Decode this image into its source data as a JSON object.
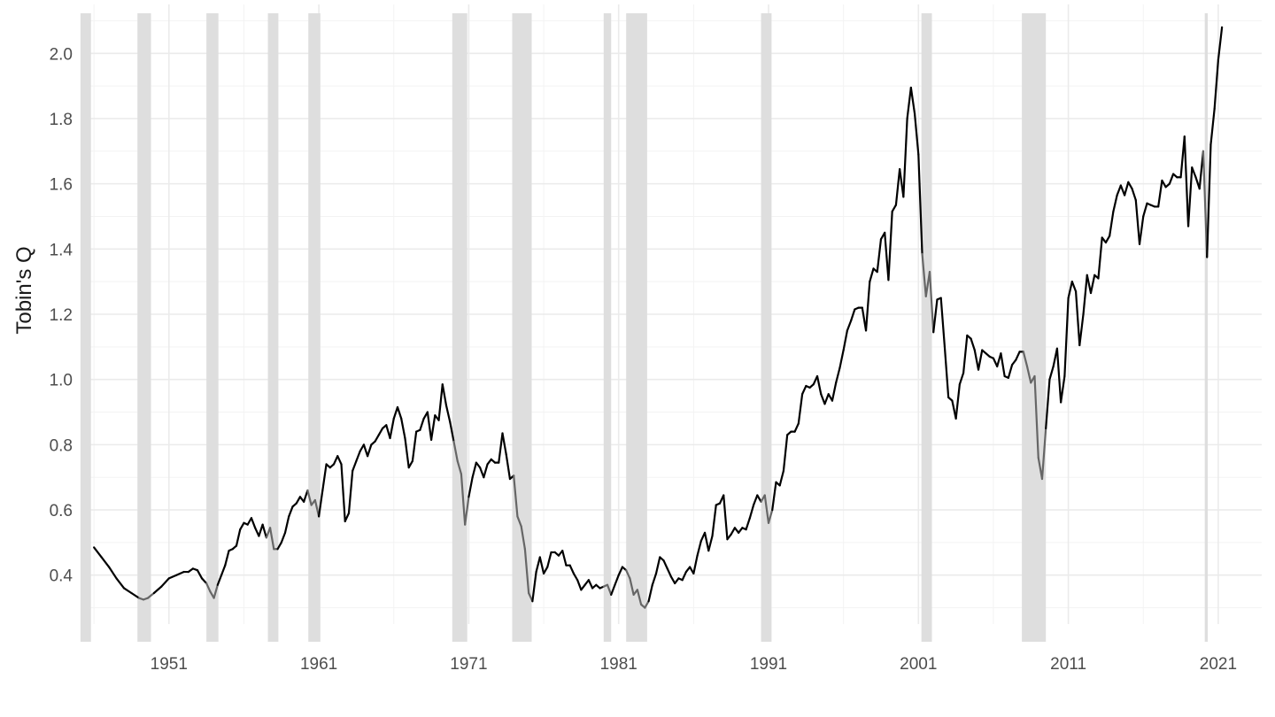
{
  "chart_data": {
    "type": "line",
    "title": "",
    "xlabel": "",
    "ylabel": "Tobin's Q",
    "xlim": [
      1945.4,
      2023.9
    ],
    "ylim": [
      0.25,
      2.15
    ],
    "grid": true,
    "x_ticks": [
      1951,
      1961,
      1971,
      1981,
      1991,
      2001,
      2011,
      2021
    ],
    "x_tick_labels": [
      "1951",
      "1961",
      "1971",
      "1981",
      "1991",
      "2001",
      "2011",
      "2021"
    ],
    "y_ticks": [
      0.4,
      0.6,
      0.8,
      1.0,
      1.2,
      1.4,
      1.6,
      1.8,
      2.0
    ],
    "y_tick_labels": [
      "0.4",
      "0.6",
      "0.8",
      "1.0",
      "1.2",
      "1.4",
      "1.6",
      "1.8",
      "2.0"
    ],
    "colors": {
      "line": "#000000",
      "line_in_recession": "#666666",
      "recession_band": "#dedede",
      "grid_major": "#ebebeb",
      "grid_minor": "#f3f3f3",
      "tick_text": "#4d4d4d",
      "axis_title": "#1a1a1a"
    },
    "recessions": [
      [
        1945.1,
        1945.8
      ],
      [
        1948.9,
        1949.8
      ],
      [
        1953.5,
        1954.3
      ],
      [
        1957.6,
        1958.3
      ],
      [
        1960.3,
        1961.1
      ],
      [
        1969.9,
        1970.9
      ],
      [
        1973.9,
        1975.2
      ],
      [
        1980.0,
        1980.5
      ],
      [
        1981.5,
        1982.9
      ],
      [
        1990.5,
        1991.2
      ],
      [
        2001.2,
        2001.9
      ],
      [
        2007.9,
        2009.5
      ],
      [
        2020.1,
        2020.3
      ]
    ],
    "series": [
      {
        "x": [
          1946.0,
          1946.5,
          1947.0,
          1947.5,
          1948.0,
          1948.5,
          1949.0,
          1949.3,
          1949.6,
          1950.0,
          1950.5,
          1951.0,
          1951.5,
          1952.0,
          1952.3,
          1952.6,
          1952.9,
          1953.2,
          1953.5,
          1953.75,
          1954.0,
          1954.25,
          1954.5,
          1954.75,
          1955.0,
          1955.25,
          1955.5,
          1955.75,
          1956.0,
          1956.25,
          1956.5,
          1956.75,
          1957.0,
          1957.25,
          1957.5,
          1957.75,
          1958.0,
          1958.25,
          1958.5,
          1958.75,
          1959.0,
          1959.25,
          1959.5,
          1959.75,
          1960.0,
          1960.25,
          1960.5,
          1960.75,
          1961.0,
          1961.25,
          1961.5,
          1961.75,
          1962.0,
          1962.25,
          1962.5,
          1962.75,
          1963.0,
          1963.25,
          1963.5,
          1963.75,
          1964.0,
          1964.25,
          1964.5,
          1964.75,
          1965.0,
          1965.25,
          1965.5,
          1965.75,
          1966.0,
          1966.25,
          1966.5,
          1966.75,
          1967.0,
          1967.25,
          1967.5,
          1967.75,
          1968.0,
          1968.25,
          1968.5,
          1968.75,
          1969.0,
          1969.25,
          1969.5,
          1969.75,
          1970.0,
          1970.25,
          1970.5,
          1970.75,
          1971.0,
          1971.25,
          1971.5,
          1971.75,
          1972.0,
          1972.25,
          1972.5,
          1972.75,
          1973.0,
          1973.25,
          1973.5,
          1973.75,
          1974.0,
          1974.25,
          1974.5,
          1974.75,
          1975.0,
          1975.25,
          1975.5,
          1975.75,
          1976.0,
          1976.25,
          1976.5,
          1976.75,
          1977.0,
          1977.25,
          1977.5,
          1977.75,
          1978.0,
          1978.25,
          1978.5,
          1978.75,
          1979.0,
          1979.25,
          1979.5,
          1979.75,
          1980.0,
          1980.25,
          1980.5,
          1980.75,
          1981.0,
          1981.25,
          1981.5,
          1981.75,
          1982.0,
          1982.25,
          1982.5,
          1982.75,
          1983.0,
          1983.25,
          1983.5,
          1983.75,
          1984.0,
          1984.25,
          1984.5,
          1984.75,
          1985.0,
          1985.25,
          1985.5,
          1985.75,
          1986.0,
          1986.25,
          1986.5,
          1986.75,
          1987.0,
          1987.25,
          1987.5,
          1987.75,
          1988.0,
          1988.25,
          1988.5,
          1988.75,
          1989.0,
          1989.25,
          1989.5,
          1989.75,
          1990.0,
          1990.25,
          1990.5,
          1990.75,
          1991.0,
          1991.25,
          1991.5,
          1991.75,
          1992.0,
          1992.25,
          1992.5,
          1992.75,
          1993.0,
          1993.25,
          1993.5,
          1993.75,
          1994.0,
          1994.25,
          1994.5,
          1994.75,
          1995.0,
          1995.25,
          1995.5,
          1995.75,
          1996.0,
          1996.25,
          1996.5,
          1996.75,
          1997.0,
          1997.25,
          1997.5,
          1997.75,
          1998.0,
          1998.25,
          1998.5,
          1998.75,
          1999.0,
          1999.25,
          1999.5,
          1999.75,
          2000.0,
          2000.25,
          2000.5,
          2000.75,
          2001.0,
          2001.25,
          2001.5,
          2001.75,
          2002.0,
          2002.25,
          2002.5,
          2002.75,
          2003.0,
          2003.25,
          2003.5,
          2003.75,
          2004.0,
          2004.25,
          2004.5,
          2004.75,
          2005.0,
          2005.25,
          2005.5,
          2005.75,
          2006.0,
          2006.25,
          2006.5,
          2006.75,
          2007.0,
          2007.25,
          2007.5,
          2007.75,
          2008.0,
          2008.25,
          2008.5,
          2008.75,
          2009.0,
          2009.25,
          2009.5,
          2009.75,
          2010.0,
          2010.25,
          2010.5,
          2010.75,
          2011.0,
          2011.25,
          2011.5,
          2011.75,
          2012.0,
          2012.25,
          2012.5,
          2012.75,
          2013.0,
          2013.25,
          2013.5,
          2013.75,
          2014.0,
          2014.25,
          2014.5,
          2014.75,
          2015.0,
          2015.25,
          2015.5,
          2015.75,
          2016.0,
          2016.25,
          2016.5,
          2016.75,
          2017.0,
          2017.25,
          2017.5,
          2017.75,
          2018.0,
          2018.25,
          2018.5,
          2018.75,
          2019.0,
          2019.25,
          2019.5,
          2019.75,
          2020.0,
          2020.25,
          2020.5,
          2020.75,
          2021.0,
          2021.25
        ],
        "y": [
          0.485,
          0.455,
          0.425,
          0.39,
          0.36,
          0.345,
          0.33,
          0.325,
          0.33,
          0.345,
          0.365,
          0.39,
          0.4,
          0.41,
          0.41,
          0.42,
          0.415,
          0.39,
          0.375,
          0.35,
          0.33,
          0.37,
          0.4,
          0.43,
          0.475,
          0.48,
          0.49,
          0.54,
          0.56,
          0.555,
          0.575,
          0.545,
          0.52,
          0.555,
          0.515,
          0.545,
          0.48,
          0.48,
          0.5,
          0.53,
          0.58,
          0.61,
          0.62,
          0.64,
          0.625,
          0.66,
          0.615,
          0.63,
          0.58,
          0.66,
          0.74,
          0.73,
          0.74,
          0.765,
          0.74,
          0.565,
          0.59,
          0.72,
          0.75,
          0.78,
          0.8,
          0.765,
          0.8,
          0.81,
          0.83,
          0.85,
          0.86,
          0.82,
          0.88,
          0.915,
          0.88,
          0.82,
          0.73,
          0.75,
          0.84,
          0.845,
          0.88,
          0.9,
          0.815,
          0.89,
          0.875,
          0.985,
          0.92,
          0.87,
          0.81,
          0.75,
          0.71,
          0.555,
          0.64,
          0.7,
          0.745,
          0.73,
          0.7,
          0.74,
          0.755,
          0.745,
          0.745,
          0.835,
          0.77,
          0.695,
          0.705,
          0.58,
          0.55,
          0.48,
          0.345,
          0.32,
          0.41,
          0.455,
          0.405,
          0.425,
          0.47,
          0.47,
          0.46,
          0.475,
          0.43,
          0.43,
          0.405,
          0.385,
          0.355,
          0.37,
          0.385,
          0.36,
          0.37,
          0.36,
          0.365,
          0.37,
          0.34,
          0.37,
          0.4,
          0.425,
          0.415,
          0.39,
          0.34,
          0.355,
          0.31,
          0.3,
          0.32,
          0.37,
          0.405,
          0.455,
          0.445,
          0.42,
          0.395,
          0.375,
          0.39,
          0.385,
          0.41,
          0.425,
          0.405,
          0.46,
          0.505,
          0.53,
          0.475,
          0.52,
          0.615,
          0.62,
          0.645,
          0.51,
          0.525,
          0.545,
          0.53,
          0.545,
          0.54,
          0.575,
          0.615,
          0.645,
          0.625,
          0.645,
          0.56,
          0.6,
          0.685,
          0.675,
          0.72,
          0.83,
          0.84,
          0.84,
          0.865,
          0.955,
          0.98,
          0.975,
          0.985,
          1.01,
          0.955,
          0.925,
          0.955,
          0.935,
          0.99,
          1.035,
          1.09,
          1.15,
          1.18,
          1.215,
          1.22,
          1.22,
          1.15,
          1.3,
          1.34,
          1.33,
          1.43,
          1.45,
          1.305,
          1.515,
          1.535,
          1.645,
          1.56,
          1.8,
          1.895,
          1.815,
          1.69,
          1.385,
          1.255,
          1.33,
          1.145,
          1.245,
          1.25,
          1.1,
          0.945,
          0.935,
          0.88,
          0.985,
          1.02,
          1.135,
          1.125,
          1.09,
          1.03,
          1.09,
          1.08,
          1.07,
          1.065,
          1.04,
          1.08,
          1.01,
          1.005,
          1.045,
          1.06,
          1.085,
          1.085,
          1.04,
          0.99,
          1.01,
          0.76,
          0.695,
          0.85,
          1.0,
          1.04,
          1.095,
          0.93,
          1.01,
          1.25,
          1.3,
          1.27,
          1.105,
          1.2,
          1.32,
          1.265,
          1.32,
          1.31,
          1.435,
          1.42,
          1.44,
          1.515,
          1.565,
          1.595,
          1.565,
          1.605,
          1.585,
          1.55,
          1.415,
          1.5,
          1.54,
          1.535,
          1.53,
          1.53,
          1.61,
          1.59,
          1.6,
          1.63,
          1.62,
          1.62,
          1.745,
          1.47,
          1.65,
          1.62,
          1.585,
          1.7,
          1.375,
          1.72,
          1.83,
          1.98,
          2.08
        ]
      }
    ]
  }
}
